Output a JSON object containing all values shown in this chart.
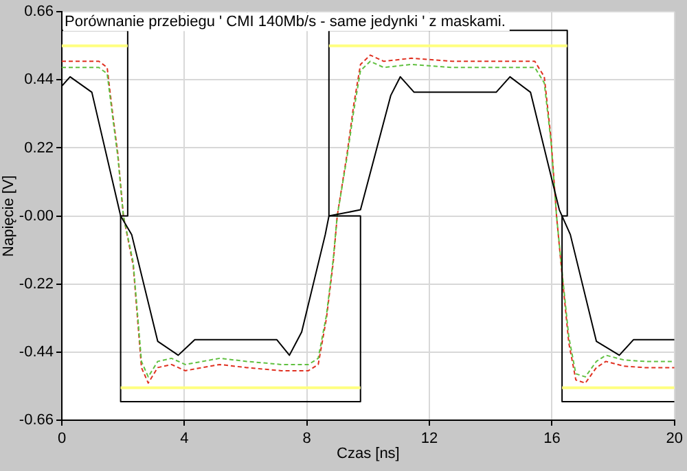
{
  "chart_data": {
    "type": "line",
    "title": "Porównanie przebiegu ' CMI 140Mb/s - same jedynki ' z maskami.",
    "xlabel": "Czas [ns]",
    "ylabel": "Napięcie [V]",
    "xlim": [
      0,
      20
    ],
    "xticks": [
      0,
      4,
      8,
      12,
      16,
      20
    ],
    "ylim": [
      -0.66,
      0.66
    ],
    "yticks": [
      -0.66,
      -0.44,
      -0.22,
      {
        "value": 0,
        "label": "-0.00"
      },
      0.22,
      0.44,
      0.66
    ],
    "grid": true,
    "legend": false,
    "marker": "none",
    "series": [
      {
        "color": "#ffff80",
        "line_style": "solid",
        "x": [
          0,
          2.15
        ],
        "values": [
          0.55,
          0.55
        ]
      },
      {
        "color": "#ffff80",
        "line_style": "solid",
        "x": [
          1.92,
          9.75
        ],
        "values": [
          -0.555,
          -0.555
        ]
      },
      {
        "color": "#ffff80",
        "line_style": "solid",
        "x": [
          8.72,
          16.5
        ],
        "values": [
          0.55,
          0.55
        ]
      },
      {
        "color": "#ffff80",
        "line_style": "solid",
        "x": [
          16.33,
          20
        ],
        "values": [
          -0.555,
          -0.555
        ]
      },
      {
        "color": "#000000",
        "line_style": "solid",
        "x": [
          0,
          2.15,
          2.15,
          1.92,
          1.92,
          9.75,
          9.75,
          8.72,
          8.72,
          16.5,
          16.5,
          16.33,
          16.33,
          20
        ],
        "values": [
          0.6,
          0.6,
          0,
          0,
          -0.6,
          -0.6,
          0,
          0,
          0.6,
          0.6,
          0,
          0,
          -0.6,
          -0.6
        ]
      },
      {
        "color": "#000000",
        "line_style": "solid",
        "x": [
          0,
          0.27,
          0.98,
          1.92,
          2.28,
          3.13,
          3.8,
          4.34,
          7.02,
          7.43,
          7.83,
          8.6,
          8.72,
          9.75,
          10.74,
          11.05,
          11.5,
          14.18,
          14.63,
          15.3,
          16.24,
          16.6,
          17.45,
          18.2,
          18.66,
          20
        ],
        "values": [
          0.42,
          0.45,
          0.4,
          0,
          -0.06,
          -0.405,
          -0.45,
          -0.4,
          -0.4,
          -0.45,
          -0.375,
          -0.06,
          0,
          0.02,
          0.39,
          0.45,
          0.4,
          0.4,
          0.45,
          0.4,
          0.02,
          -0.06,
          -0.405,
          -0.45,
          -0.4,
          -0.4
        ]
      },
      {
        "color": "#60c040",
        "line_style": "dashed",
        "x": [
          0,
          1.21,
          1.48,
          1.66,
          1.83,
          2.01,
          2.33,
          2.6,
          2.82,
          3.13,
          3.58,
          4.03,
          5.15,
          6.04,
          7.16,
          8.05,
          8.37,
          8.64,
          8.86,
          8.99,
          9.31,
          9.53,
          9.75,
          10.07,
          10.51,
          11.41,
          12.75,
          14.09,
          15.44,
          15.75,
          15.97,
          16.15,
          16.33,
          16.55,
          16.78,
          17.09,
          17.45,
          17.76,
          18.34,
          19.02,
          20
        ],
        "values": [
          0.48,
          0.48,
          0.46,
          0.32,
          0.19,
          0,
          -0.15,
          -0.47,
          -0.52,
          -0.47,
          -0.46,
          -0.48,
          -0.46,
          -0.47,
          -0.48,
          -0.48,
          -0.46,
          -0.32,
          -0.14,
          0,
          0.19,
          0.34,
          0.47,
          0.5,
          0.48,
          0.49,
          0.48,
          0.48,
          0.48,
          0.43,
          0.24,
          0,
          -0.18,
          -0.39,
          -0.51,
          -0.52,
          -0.47,
          -0.45,
          -0.465,
          -0.47,
          -0.47
        ]
      },
      {
        "color": "#e03020",
        "line_style": "dashed",
        "x": [
          0,
          1.21,
          1.48,
          1.66,
          1.83,
          2.01,
          2.33,
          2.6,
          2.82,
          3.13,
          3.58,
          4.03,
          5.15,
          6.04,
          7.16,
          8.05,
          8.37,
          8.64,
          8.86,
          8.99,
          9.31,
          9.53,
          9.75,
          10.07,
          10.51,
          11.41,
          12.75,
          14.09,
          15.44,
          15.75,
          15.97,
          16.15,
          16.33,
          16.55,
          16.78,
          17.09,
          17.45,
          17.76,
          18.34,
          19.02,
          20
        ],
        "values": [
          0.5,
          0.5,
          0.48,
          0.33,
          0.2,
          0,
          -0.16,
          -0.49,
          -0.54,
          -0.49,
          -0.48,
          -0.5,
          -0.48,
          -0.49,
          -0.5,
          -0.5,
          -0.48,
          -0.33,
          -0.15,
          0,
          0.2,
          0.36,
          0.49,
          0.52,
          0.5,
          0.51,
          0.5,
          0.5,
          0.5,
          0.45,
          0.25,
          0,
          -0.19,
          -0.41,
          -0.53,
          -0.54,
          -0.49,
          -0.47,
          -0.485,
          -0.49,
          -0.49
        ]
      }
    ]
  }
}
